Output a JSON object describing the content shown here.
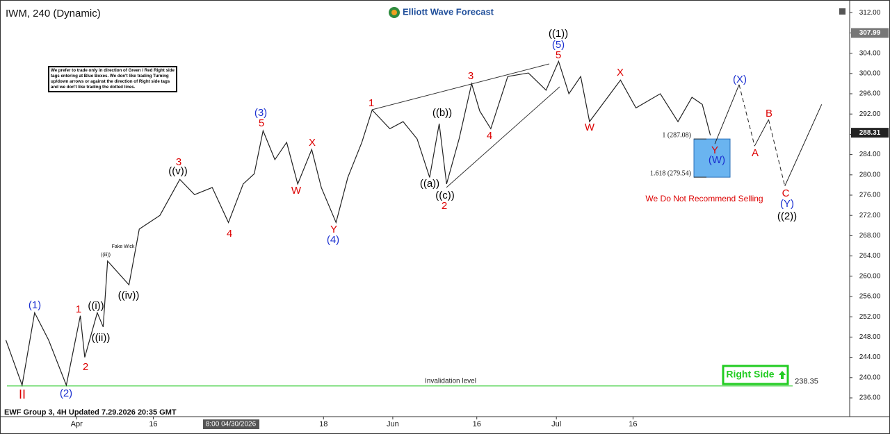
{
  "chart_data": {
    "type": "line",
    "title": "IWM, 240 (Dynamic)",
    "logo": "Elliott Wave Forecast",
    "footer": "EWF Group 3, 4H Updated 7.29.2026 20:35 GMT",
    "note": "We prefer to trade only in direction of Green / Red Right side tags entering at Blue Boxes. We don't like trading Turning up/down arrows or against the direction of Right side tags and we don't like trading the dotted lines.",
    "cursor_label": "8:00 04/30/2026",
    "xlim": [
      -10.4,
      104.9
    ],
    "xticks": [
      {
        "value": 0,
        "label": "Apr"
      },
      {
        "value": 10.4,
        "label": "16"
      },
      {
        "value": 33.5,
        "label": "18"
      },
      {
        "value": 42.9,
        "label": "Jun"
      },
      {
        "value": 54.3,
        "label": "16"
      },
      {
        "value": 65.1,
        "label": "Jul"
      },
      {
        "value": 75.5,
        "label": "16"
      }
    ],
    "ylim": [
      232.3,
      313.4
    ],
    "yticks": [
      {
        "value": 236,
        "label": "236.00"
      },
      {
        "value": 240,
        "label": "240.00"
      },
      {
        "value": 244,
        "label": "244.00"
      },
      {
        "value": 248,
        "label": "248.00"
      },
      {
        "value": 252,
        "label": "252.00"
      },
      {
        "value": 256,
        "label": "256.00"
      },
      {
        "value": 260,
        "label": "260.00"
      },
      {
        "value": 264,
        "label": "264.00"
      },
      {
        "value": 268,
        "label": "268.00"
      },
      {
        "value": 272,
        "label": "272.00"
      },
      {
        "value": 276,
        "label": "276.00"
      },
      {
        "value": 280,
        "label": "280.00"
      },
      {
        "value": 284,
        "label": "284.00"
      },
      {
        "value": 288,
        "label": "288.00"
      },
      {
        "value": 292,
        "label": "292.00"
      },
      {
        "value": 296,
        "label": "296.00"
      },
      {
        "value": 300,
        "label": "300.00"
      },
      {
        "value": 304,
        "label": "304.00"
      },
      {
        "value": 308,
        "label": "308.00"
      },
      {
        "value": 312,
        "label": "312.00"
      }
    ],
    "series": [
      {
        "color": "#222222",
        "x": [
          -9.6,
          -7.4,
          -5.7,
          -3.8,
          -1.4,
          0.5,
          1.1,
          2.8,
          3.6,
          4.2,
          7.1,
          8.5,
          11.3,
          14,
          16,
          18.4,
          20.6,
          22.6,
          24.1,
          25.3,
          26.9,
          28.5,
          30,
          31.9,
          33.2,
          35.2,
          36.8,
          38.7,
          40.1,
          42.5,
          44.3,
          46.2,
          47.9,
          49.2,
          50.2,
          51.9,
          53.6,
          54.7,
          56.2,
          58.5,
          61.3,
          63.7,
          65.4,
          66.8,
          68.4,
          69.6,
          71.7,
          73.8,
          75.9,
          79.2,
          81.6,
          83.5,
          84.9,
          86
        ],
        "values": [
          247.4,
          238.5,
          252.8,
          247.4,
          238.5,
          252.2,
          244,
          252.8,
          250,
          263,
          258.3,
          269.3,
          272,
          279.1,
          276.1,
          277.5,
          270.6,
          278.2,
          280.2,
          288.7,
          283,
          286.4,
          278.2,
          285,
          277.5,
          270.6,
          279.5,
          286.4,
          292.8,
          289.1,
          290.5,
          287.1,
          279.5,
          290.1,
          278.2,
          287.1,
          298,
          292.6,
          289.1,
          299.4,
          300.1,
          296.7,
          302.4,
          296,
          299.4,
          290.5,
          294.6,
          298.7,
          293.2,
          296,
          290.5,
          295.3,
          293.9,
          287.8
        ]
      },
      {
        "color": "#222222",
        "x": [
          86.6,
          89.9,
          92,
          93.9,
          96.1,
          101.1
        ],
        "values": [
          286.1,
          297.8,
          285.7,
          290.9,
          277.8,
          293.9
        ],
        "segment_dashed": [
          false,
          true,
          false,
          true,
          false
        ]
      }
    ],
    "price_tags": [
      307.99,
      288.31
    ],
    "fib_levels": [
      {
        "label": "1 (287.08)",
        "value": 287.08
      },
      {
        "label": "1.618 (279.54)",
        "value": 279.54
      }
    ],
    "box_color": "#6ab4f0",
    "box_label": "We Do Not Recommend Selling",
    "invalidation": {
      "label": "Invalidation level",
      "value": 238.35,
      "color": "#33cc33"
    },
    "right_side": "Right Side",
    "annotations": [
      {
        "text": "II",
        "color": "#dd0000"
      },
      {
        "text": "(1)",
        "color": "#1a2fd0"
      },
      {
        "text": "(2)",
        "color": "#1a2fd0"
      },
      {
        "text": "1",
        "color": "#dd0000"
      },
      {
        "text": "2",
        "color": "#dd0000"
      },
      {
        "text": "((i))",
        "color": "#000000"
      },
      {
        "text": "((ii))",
        "color": "#000000"
      },
      {
        "text": "((iii))",
        "color": "#000000"
      },
      {
        "text": "Fake Wick",
        "color": "#000000"
      },
      {
        "text": "((iv))",
        "color": "#000000"
      },
      {
        "text": "3",
        "color": "#dd0000"
      },
      {
        "text": "((v))",
        "color": "#000000"
      },
      {
        "text": "4",
        "color": "#dd0000"
      },
      {
        "text": "(3)",
        "color": "#1a2fd0"
      },
      {
        "text": "5",
        "color": "#dd0000"
      },
      {
        "text": "X",
        "color": "#dd0000"
      },
      {
        "text": "W",
        "color": "#dd0000"
      },
      {
        "text": "Y",
        "color": "#dd0000"
      },
      {
        "text": "(4)",
        "color": "#1a2fd0"
      },
      {
        "text": "1",
        "color": "#dd0000"
      },
      {
        "text": "((b))",
        "color": "#000000"
      },
      {
        "text": "((a))",
        "color": "#000000"
      },
      {
        "text": "((c))",
        "color": "#000000"
      },
      {
        "text": "2",
        "color": "#dd0000"
      },
      {
        "text": "3",
        "color": "#dd0000"
      },
      {
        "text": "4",
        "color": "#dd0000"
      },
      {
        "text": "((1))",
        "color": "#000000"
      },
      {
        "text": "(5)",
        "color": "#1a2fd0"
      },
      {
        "text": "5",
        "color": "#dd0000"
      },
      {
        "text": "X",
        "color": "#dd0000"
      },
      {
        "text": "W",
        "color": "#dd0000"
      },
      {
        "text": "(X)",
        "color": "#1a2fd0"
      },
      {
        "text": "B",
        "color": "#dd0000"
      },
      {
        "text": "A",
        "color": "#dd0000"
      },
      {
        "text": "C",
        "color": "#dd0000"
      },
      {
        "text": "(Y)",
        "color": "#1a2fd0"
      },
      {
        "text": "((2))",
        "color": "#000000"
      },
      {
        "text": "Y",
        "color": "#dd0000"
      },
      {
        "text": "(W)",
        "color": "#1a2fd0"
      }
    ]
  }
}
